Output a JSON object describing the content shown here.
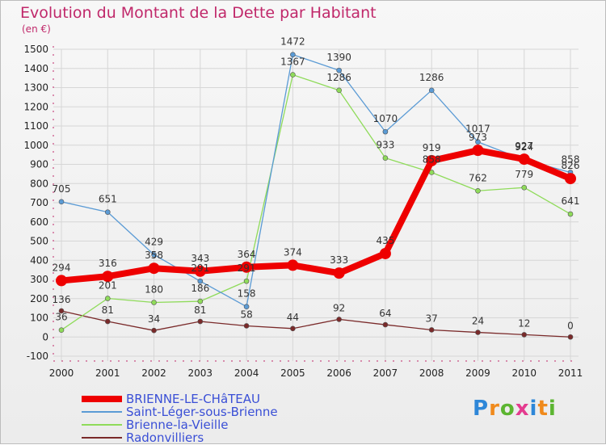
{
  "header": {
    "title": "Evolution du Montant de la Dette par Habitant",
    "unit": "(en €)"
  },
  "logo": {
    "letters": [
      "P",
      "r",
      "o",
      "x",
      "i",
      "t",
      "i"
    ],
    "colors": [
      "#2e87d8",
      "#f08a1c",
      "#5cb531",
      "#e43b8f",
      "#2e87d8",
      "#f08a1c",
      "#5cb531"
    ]
  },
  "chart_data": {
    "type": "line",
    "title": "Evolution du Montant de la Dette par Habitant",
    "ylabel": "(en €)",
    "xlabel": "",
    "categories": [
      "2000",
      "2001",
      "2002",
      "2003",
      "2004",
      "2005",
      "2006",
      "2007",
      "2008",
      "2009",
      "2010",
      "2011"
    ],
    "ylim": [
      -100,
      1500
    ],
    "yticks": [
      -100,
      0,
      100,
      200,
      300,
      400,
      500,
      600,
      700,
      800,
      900,
      1000,
      1100,
      1200,
      1300,
      1400,
      1500
    ],
    "grid": true,
    "legend_position": "bottom-left",
    "series": [
      {
        "name": "BRIENNE-LE-CHâTEAU",
        "color": "#ee0000",
        "emphasis": true,
        "values": [
          294,
          316,
          358,
          343,
          364,
          374,
          333,
          435,
          919,
          973,
          927,
          826
        ]
      },
      {
        "name": "Saint-Léger-sous-Brienne",
        "color": "#5b9bd5",
        "emphasis": false,
        "values": [
          705,
          651,
          429,
          291,
          158,
          1472,
          1390,
          1070,
          1286,
          1017,
          924,
          858
        ]
      },
      {
        "name": "Brienne-la-Vieille",
        "color": "#8fdb5a",
        "emphasis": false,
        "values": [
          36,
          201,
          180,
          186,
          291,
          1367,
          1286,
          933,
          858,
          762,
          779,
          641
        ]
      },
      {
        "name": "Radonvilliers",
        "color": "#7a2a2a",
        "emphasis": false,
        "values": [
          136,
          81,
          34,
          81,
          58,
          44,
          92,
          64,
          37,
          24,
          12,
          0
        ]
      }
    ]
  }
}
